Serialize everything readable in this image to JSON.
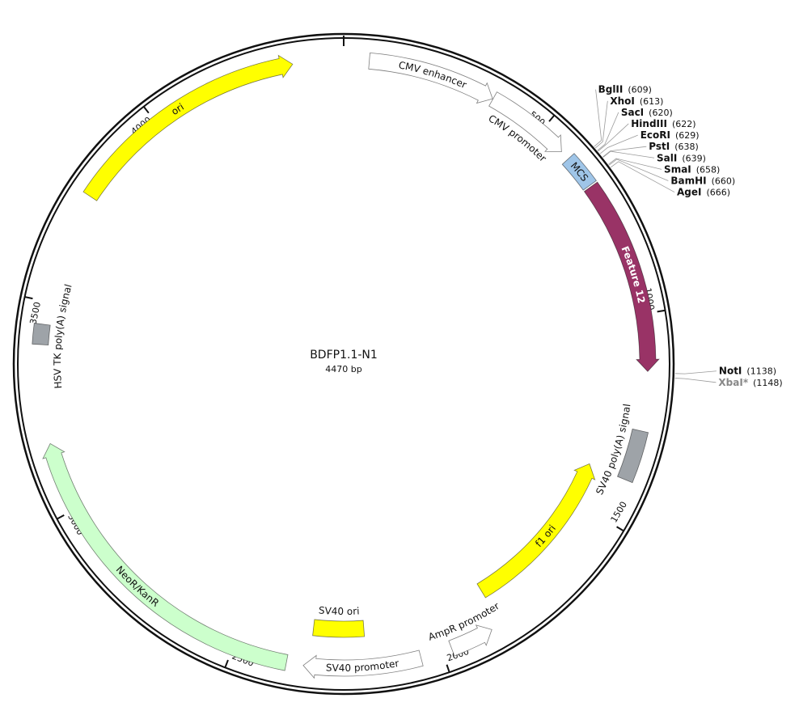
{
  "title": "BDFP1.1-N1",
  "size": {
    "value": 4470,
    "label": "4470 bp"
  },
  "ticks": [
    500,
    1000,
    1500,
    2000,
    2500,
    3000,
    3500,
    4000
  ],
  "features": [
    {
      "name": "CMV enhancer",
      "start": 60,
      "end": 364,
      "strand": 1,
      "color": "#ffffff",
      "label_position": "on"
    },
    {
      "name": "CMV promoter",
      "start": 365,
      "end": 568,
      "strand": 1,
      "color": "#ffffff",
      "label_position": "inside"
    },
    {
      "name": "MCS",
      "start": 591,
      "end": 671,
      "strand": 0,
      "color": "#9fc5e8",
      "label_position": "on"
    },
    {
      "name": "Feature 12",
      "start": 675,
      "end": 1135,
      "strand": 1,
      "color": "#993366",
      "label_position": "on",
      "label_color": "#ffffff"
    },
    {
      "name": "SV40 poly(A) signal",
      "start": 1275,
      "end": 1395,
      "strand": 0,
      "color": "#9ea3a8",
      "label_position": "inside"
    },
    {
      "name": "f1 ori",
      "start": 1392,
      "end": 1847,
      "strand": -1,
      "color": "#ffff00",
      "label_position": "on"
    },
    {
      "name": "AmpR promoter",
      "start": 1873,
      "end": 1977,
      "strand": -1,
      "color": "#ffffff",
      "label_position": "inside"
    },
    {
      "name": "SV40 promoter",
      "start": 2052,
      "end": 2330,
      "strand": 1,
      "color": "#ffffff",
      "label_position": "on"
    },
    {
      "name": "SV40 ori",
      "start": 2181,
      "end": 2316,
      "strand": 0,
      "color": "#ffff00",
      "label_position": "inside"
    },
    {
      "name": "NeoR/KanR",
      "start": 2370,
      "end": 3164,
      "strand": 1,
      "color": "#ccffcc",
      "label_position": "on"
    },
    {
      "name": "HSV TK poly(A) signal",
      "start": 3398,
      "end": 3446,
      "strand": 0,
      "color": "#9ea3a8",
      "label_position": "inside"
    },
    {
      "name": "ori",
      "start": 3768,
      "end": 4350,
      "strand": 1,
      "color": "#ffff00",
      "label_position": "on"
    }
  ],
  "sites": [
    {
      "name": "BglII",
      "position": {
        "value": 609,
        "label": "(609)"
      }
    },
    {
      "name": "XhoI",
      "position": {
        "value": 613,
        "label": "(613)"
      }
    },
    {
      "name": "SacI",
      "position": {
        "value": 620,
        "label": "(620)"
      }
    },
    {
      "name": "HindIII",
      "position": {
        "value": 622,
        "label": "(622)"
      }
    },
    {
      "name": "EcoRI",
      "position": {
        "value": 629,
        "label": "(629)"
      }
    },
    {
      "name": "PstI",
      "position": {
        "value": 638,
        "label": "(638)"
      }
    },
    {
      "name": "SalI",
      "position": {
        "value": 639,
        "label": "(639)"
      }
    },
    {
      "name": "SmaI",
      "position": {
        "value": 658,
        "label": "(658)"
      }
    },
    {
      "name": "BamHI",
      "position": {
        "value": 660,
        "label": "(660)"
      }
    },
    {
      "name": "AgeI",
      "position": {
        "value": 666,
        "label": "(666)"
      }
    },
    {
      "name": "NotI",
      "position": {
        "value": 1138,
        "label": "(1138)"
      }
    },
    {
      "name": "XbaI*",
      "position": {
        "value": 1148,
        "label": "(1148)"
      },
      "color": "#888888"
    }
  ]
}
